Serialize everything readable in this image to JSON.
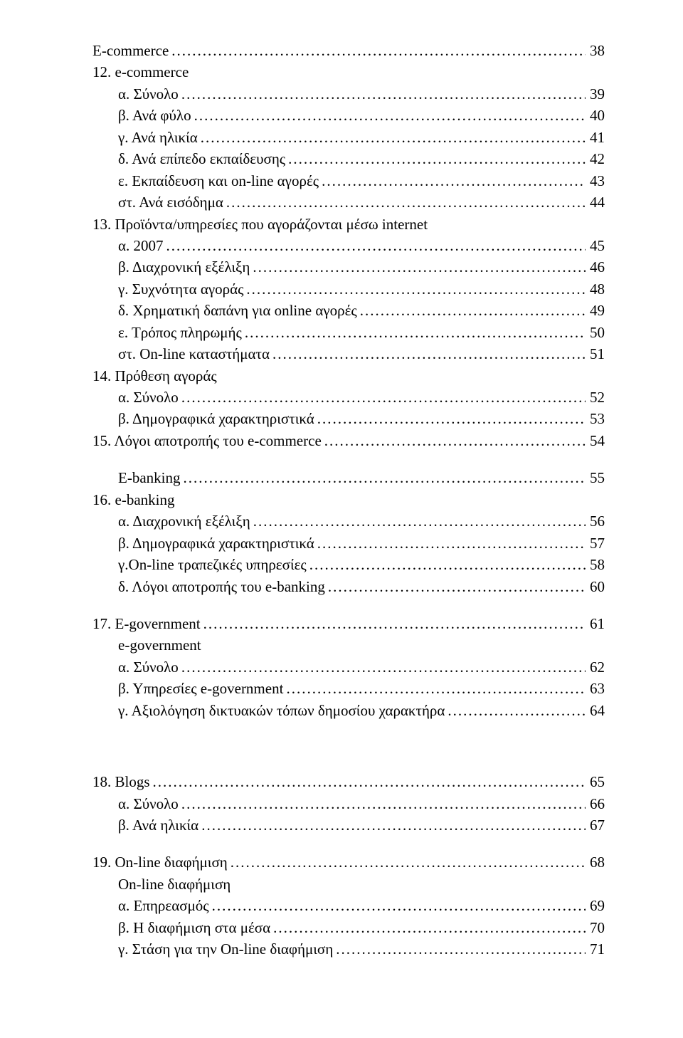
{
  "sections": [
    {
      "label": "E-commerce",
      "page": "38",
      "indent": 0,
      "gapAfter": "none"
    },
    {
      "label": "12. e-commerce",
      "page": "",
      "indent": 0,
      "gapAfter": "none",
      "noPage": true
    },
    {
      "label": "α. Σύνολο",
      "page": "39",
      "indent": 1,
      "gapAfter": "none"
    },
    {
      "label": "β. Ανά φύλο",
      "page": "40",
      "indent": 1,
      "gapAfter": "none"
    },
    {
      "label": "γ. Ανά ηλικία",
      "page": "41",
      "indent": 1,
      "gapAfter": "none"
    },
    {
      "label": "δ. Ανά επίπεδο εκπαίδευσης",
      "page": "42",
      "indent": 1,
      "gapAfter": "none"
    },
    {
      "label": "ε. Εκπαίδευση και on-line αγορές",
      "page": "43",
      "indent": 1,
      "gapAfter": "none"
    },
    {
      "label": "στ. Ανά εισόδημα",
      "page": "44",
      "indent": 1,
      "gapAfter": "none"
    },
    {
      "label": "13. Προϊόντα/υπηρεσίες που αγοράζονται μέσω internet",
      "page": "",
      "indent": 0,
      "gapAfter": "none",
      "noPage": true
    },
    {
      "label": "α. 2007",
      "page": "45",
      "indent": 1,
      "gapAfter": "none"
    },
    {
      "label": "β. Διαχρονική εξέλιξη",
      "page": "46",
      "indent": 1,
      "gapAfter": "none"
    },
    {
      "label": "γ. Συχνότητα αγοράς",
      "page": "48",
      "indent": 1,
      "gapAfter": "none"
    },
    {
      "label": "δ. Χρηματική δαπάνη για online αγορές",
      "page": "49",
      "indent": 1,
      "gapAfter": "none"
    },
    {
      "label": "ε. Τρόπος πληρωμής",
      "page": "50",
      "indent": 1,
      "gapAfter": "none"
    },
    {
      "label": "στ. On-line καταστήματα",
      "page": "51",
      "indent": 1,
      "gapAfter": "none"
    },
    {
      "label": "14. Πρόθεση αγοράς",
      "page": "",
      "indent": 0,
      "gapAfter": "none",
      "noPage": true
    },
    {
      "label": "α. Σύνολο",
      "page": "52",
      "indent": 1,
      "gapAfter": "none"
    },
    {
      "label": "β. Δημογραφικά χαρακτηριστικά",
      "page": "53",
      "indent": 1,
      "gapAfter": "none"
    },
    {
      "label": "15. Λόγοι αποτροπής του e-commerce",
      "page": "54",
      "indent": 0,
      "gapAfter": "section"
    },
    {
      "label": "E-banking",
      "page": "55",
      "indent": 1,
      "gapAfter": "none"
    },
    {
      "label": "16. e-banking",
      "page": "",
      "indent": 0,
      "gapAfter": "none",
      "noPage": true
    },
    {
      "label": "α. Διαχρονική εξέλιξη",
      "page": "56",
      "indent": 1,
      "gapAfter": "none"
    },
    {
      "label": "β. Δημογραφικά χαρακτηριστικά",
      "page": "57",
      "indent": 1,
      "gapAfter": "none"
    },
    {
      "label": "γ.On-line τραπεζικές υπηρεσίες",
      "page": "58",
      "indent": 1,
      "gapAfter": "none"
    },
    {
      "label": "δ. Λόγοι αποτροπής του e-banking",
      "page": "60",
      "indent": 1,
      "gapAfter": "section"
    },
    {
      "label": "17. E-government",
      "page": "61",
      "indent": 0,
      "gapAfter": "none"
    },
    {
      "label": "e-government",
      "page": "",
      "indent": 1,
      "gapAfter": "none",
      "noPage": true
    },
    {
      "label": "α. Σύνολο",
      "page": "62",
      "indent": 1,
      "gapAfter": "none"
    },
    {
      "label": "β. Υπηρεσίες e-government",
      "page": "63",
      "indent": 1,
      "gapAfter": "none"
    },
    {
      "label": "γ. Αξιολόγηση δικτυακών τόπων δημοσίου χαρακτήρα",
      "page": "64",
      "indent": 1,
      "gapAfter": "big"
    },
    {
      "label": "18. Blogs",
      "page": "65",
      "indent": 0,
      "gapAfter": "none"
    },
    {
      "label": "α. Σύνολο",
      "page": "66",
      "indent": 1,
      "gapAfter": "none"
    },
    {
      "label": "β. Ανά ηλικία",
      "page": "67",
      "indent": 1,
      "gapAfter": "section"
    },
    {
      "label": "19. On-line διαφήμιση",
      "page": "68",
      "indent": 0,
      "gapAfter": "none"
    },
    {
      "label": "On-line διαφήμιση",
      "page": "",
      "indent": 1,
      "gapAfter": "none",
      "noPage": true
    },
    {
      "label": "α. Επηρεασμός",
      "page": "69",
      "indent": 1,
      "gapAfter": "none"
    },
    {
      "label": "β. Η διαφήμιση στα μέσα",
      "page": "70",
      "indent": 1,
      "gapAfter": "none"
    },
    {
      "label": "γ. Στάση για την On-line διαφήμιση",
      "page": "71",
      "indent": 1,
      "gapAfter": "none"
    }
  ]
}
